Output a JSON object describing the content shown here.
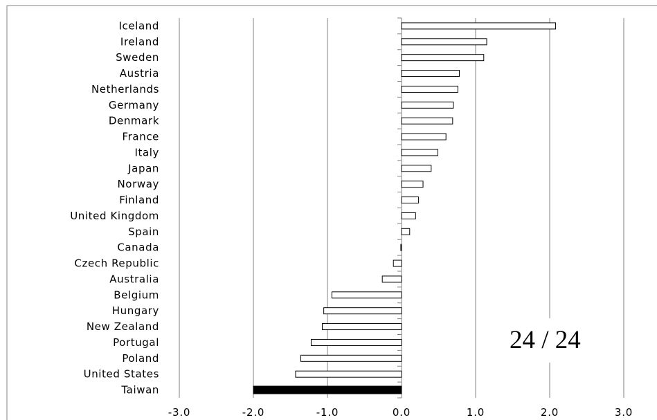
{
  "chart_data": {
    "type": "bar",
    "orientation": "horizontal",
    "categories": [
      "Iceland",
      "Ireland",
      "Sweden",
      "Austria",
      "Netherlands",
      "Germany",
      "Denmark",
      "France",
      "Italy",
      "Japan",
      "Norway",
      "Finland",
      "United Kingdom",
      "Spain",
      "Canada",
      "Czech Republic",
      "Australia",
      "Belgium",
      "Hungary",
      "New Zealand",
      "Portugal",
      "Poland",
      "United States",
      "Taiwan"
    ],
    "values": [
      2.08,
      1.15,
      1.11,
      0.78,
      0.76,
      0.7,
      0.69,
      0.6,
      0.49,
      0.4,
      0.29,
      0.23,
      0.19,
      0.11,
      -0.01,
      -0.11,
      -0.26,
      -0.94,
      -1.05,
      -1.07,
      -1.22,
      -1.36,
      -1.43,
      -2.0
    ],
    "highlight": "Taiwan",
    "colors": {
      "bar_fill": "#ffffff",
      "bar_stroke": "#000000",
      "highlight_fill": "#000000",
      "gridline": "#808080"
    },
    "xlim": [
      -3.0,
      3.0
    ],
    "x_ticks": [
      "-3.0",
      "-2.0",
      "-1.0",
      "0.0",
      "1.0",
      "2.0",
      "3.0"
    ],
    "grid": true,
    "title": "",
    "xlabel": "",
    "ylabel": ""
  },
  "overlay": {
    "page_counter": "24 / 24"
  }
}
